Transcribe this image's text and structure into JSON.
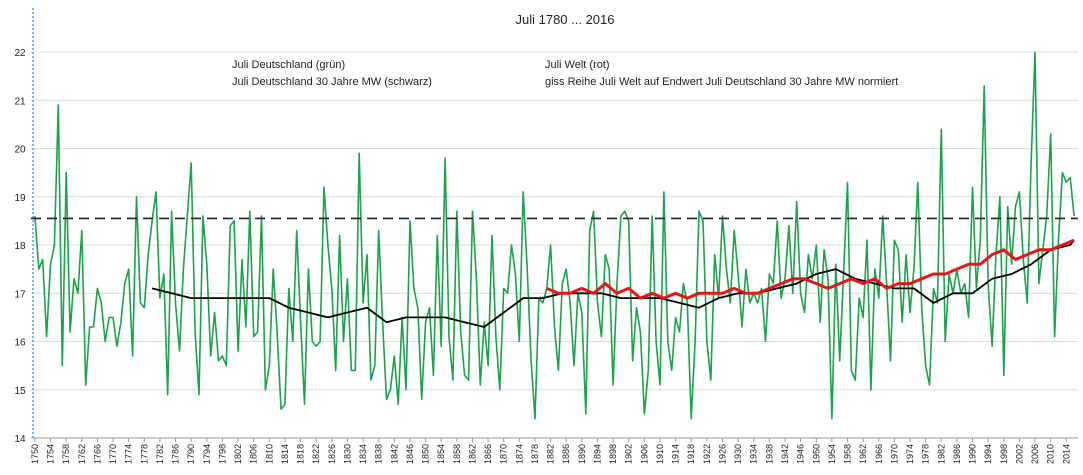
{
  "chart_data": {
    "type": "line",
    "title": "Juli 1780 ... 2016",
    "annotation": "giss Reihe Juli Welt auf Endwert Juli Deutschland 30 Jahre MW normiert",
    "xlim": [
      1749,
      2017
    ],
    "ylim": [
      14,
      22
    ],
    "yticks": [
      14,
      15,
      16,
      17,
      18,
      19,
      20,
      21,
      22
    ],
    "xticks": [
      1750,
      1754,
      1758,
      1762,
      1766,
      1770,
      1774,
      1778,
      1782,
      1786,
      1790,
      1794,
      1798,
      1802,
      1806,
      1810,
      1814,
      1818,
      1822,
      1826,
      1830,
      1834,
      1838,
      1842,
      1846,
      1850,
      1854,
      1858,
      1862,
      1866,
      1870,
      1874,
      1878,
      1882,
      1886,
      1890,
      1894,
      1898,
      1902,
      1906,
      1910,
      1914,
      1918,
      1922,
      1926,
      1930,
      1934,
      1938,
      1942,
      1946,
      1950,
      1954,
      1958,
      1962,
      1966,
      1970,
      1974,
      1978,
      1982,
      1986,
      1990,
      1994,
      1998,
      2002,
      2006,
      2010,
      2014
    ],
    "grid": true,
    "hline": 18.55,
    "series": [
      {
        "name": "Juli Deutschland (grün)",
        "color": "#1aa34a",
        "x": [
          1750,
          1751,
          1752,
          1753,
          1754,
          1755,
          1756,
          1757,
          1758,
          1759,
          1760,
          1761,
          1762,
          1763,
          1764,
          1765,
          1766,
          1767,
          1768,
          1769,
          1770,
          1771,
          1772,
          1773,
          1774,
          1775,
          1776,
          1777,
          1778,
          1779,
          1780,
          1781,
          1782,
          1783,
          1784,
          1785,
          1786,
          1787,
          1788,
          1789,
          1790,
          1791,
          1792,
          1793,
          1794,
          1795,
          1796,
          1797,
          1798,
          1799,
          1800,
          1801,
          1802,
          1803,
          1804,
          1805,
          1806,
          1807,
          1808,
          1809,
          1810,
          1811,
          1812,
          1813,
          1814,
          1815,
          1816,
          1817,
          1818,
          1819,
          1820,
          1821,
          1822,
          1823,
          1824,
          1825,
          1826,
          1827,
          1828,
          1829,
          1830,
          1831,
          1832,
          1833,
          1834,
          1835,
          1836,
          1837,
          1838,
          1839,
          1840,
          1841,
          1842,
          1843,
          1844,
          1845,
          1846,
          1847,
          1848,
          1849,
          1850,
          1851,
          1852,
          1853,
          1854,
          1855,
          1856,
          1857,
          1858,
          1859,
          1860,
          1861,
          1862,
          1863,
          1864,
          1865,
          1866,
          1867,
          1868,
          1869,
          1870,
          1871,
          1872,
          1873,
          1874,
          1875,
          1876,
          1877,
          1878,
          1879,
          1880,
          1881,
          1882,
          1883,
          1884,
          1885,
          1886,
          1887,
          1888,
          1889,
          1890,
          1891,
          1892,
          1893,
          1894,
          1895,
          1896,
          1897,
          1898,
          1899,
          1900,
          1901,
          1902,
          1903,
          1904,
          1905,
          1906,
          1907,
          1908,
          1909,
          1910,
          1911,
          1912,
          1913,
          1914,
          1915,
          1916,
          1917,
          1918,
          1919,
          1920,
          1921,
          1922,
          1923,
          1924,
          1925,
          1926,
          1927,
          1928,
          1929,
          1930,
          1931,
          1932,
          1933,
          1934,
          1935,
          1936,
          1937,
          1938,
          1939,
          1940,
          1941,
          1942,
          1943,
          1944,
          1945,
          1946,
          1947,
          1948,
          1949,
          1950,
          1951,
          1952,
          1953,
          1954,
          1955,
          1956,
          1957,
          1958,
          1959,
          1960,
          1961,
          1962,
          1963,
          1964,
          1965,
          1966,
          1967,
          1968,
          1969,
          1970,
          1971,
          1972,
          1973,
          1974,
          1975,
          1976,
          1977,
          1978,
          1979,
          1980,
          1981,
          1982,
          1983,
          1984,
          1985,
          1986,
          1987,
          1988,
          1989,
          1990,
          1991,
          1992,
          1993,
          1994,
          1995,
          1996,
          1997,
          1998,
          1999,
          2000,
          2001,
          2002,
          2003,
          2004,
          2005,
          2006,
          2007,
          2008,
          2009,
          2010,
          2011,
          2012,
          2013,
          2014,
          2015,
          2016
        ],
        "values": [
          18.6,
          17.5,
          17.7,
          16.1,
          17.6,
          18.0,
          20.9,
          15.5,
          19.5,
          16.2,
          17.3,
          17.0,
          18.3,
          15.1,
          16.3,
          16.3,
          17.1,
          16.8,
          16.0,
          16.5,
          16.5,
          15.9,
          16.4,
          17.2,
          17.5,
          15.7,
          19.0,
          16.8,
          16.7,
          17.8,
          18.5,
          19.1,
          16.9,
          17.4,
          14.9,
          18.7,
          16.8,
          15.8,
          17.5,
          18.6,
          19.7,
          16.2,
          14.9,
          18.6,
          17.6,
          15.7,
          16.6,
          15.6,
          15.7,
          15.5,
          18.4,
          18.5,
          15.8,
          17.7,
          16.3,
          18.7,
          16.1,
          16.2,
          18.6,
          15.0,
          15.5,
          17.5,
          16.2,
          14.6,
          14.7,
          17.1,
          16.0,
          18.3,
          16.4,
          14.7,
          17.5,
          16.0,
          15.9,
          16.0,
          19.2,
          18.0,
          17.1,
          15.4,
          18.2,
          16.0,
          17.3,
          15.4,
          15.4,
          19.9,
          16.8,
          17.8,
          15.2,
          15.5,
          18.3,
          16.4,
          14.8,
          15.0,
          15.7,
          14.7,
          16.5,
          15.0,
          18.5,
          17.1,
          16.7,
          14.8,
          16.4,
          16.7,
          15.3,
          18.2,
          15.9,
          19.8,
          16.1,
          15.2,
          18.7,
          16.2,
          15.3,
          15.2,
          18.7,
          17.3,
          15.1,
          16.4,
          15.5,
          18.2,
          16.1,
          15.0,
          17.1,
          17.0,
          18.0,
          17.4,
          16.0,
          19.1,
          17.5,
          15.6,
          14.4,
          16.9,
          16.8,
          17.1,
          18.0,
          16.3,
          15.4,
          17.2,
          17.5,
          16.8,
          15.5,
          17.0,
          16.6,
          14.5,
          18.3,
          18.7,
          16.8,
          16.1,
          17.8,
          17.5,
          15.1,
          17.2,
          18.6,
          18.7,
          18.5,
          15.6,
          16.7,
          16.2,
          14.5,
          15.4,
          18.6,
          16.0,
          15.1,
          19.1,
          16.0,
          15.4,
          16.5,
          16.2,
          17.2,
          16.8,
          14.4,
          16.0,
          18.7,
          18.5,
          16.0,
          15.2,
          17.8,
          16.9,
          18.6,
          17.5,
          16.8,
          18.3,
          17.4,
          16.3,
          17.5,
          16.8,
          17.0,
          16.8,
          17.1,
          16.0,
          17.4,
          17.2,
          18.5,
          16.9,
          17.3,
          18.4,
          17.0,
          18.9,
          17.0,
          16.6,
          17.8,
          17.3,
          18.0,
          16.4,
          17.9,
          17.3,
          14.4,
          17.6,
          15.6,
          17.4,
          19.3,
          15.4,
          15.2,
          16.9,
          16.5,
          18.1,
          15.0,
          17.5,
          16.9,
          18.6,
          17.2,
          15.6,
          18.1,
          17.9,
          16.4,
          17.8,
          16.6,
          17.5,
          19.3,
          16.7,
          15.5,
          15.1,
          17.1,
          16.8,
          20.4,
          16.0,
          17.4,
          17.0,
          17.5,
          17.0,
          17.2,
          16.5,
          19.2,
          17.1,
          18.1,
          21.3,
          17.2,
          15.9,
          17.8,
          19.0,
          15.3,
          18.8,
          17.6,
          18.8,
          19.1,
          17.7,
          16.8,
          19.7,
          22.0,
          17.2,
          17.9,
          18.6,
          20.3,
          16.1,
          18.1,
          19.5,
          19.3,
          19.4,
          18.6
        ]
      },
      {
        "name": "Juli Deutschland 30 Jahre MW (schwarz)",
        "color": "#000000",
        "x": [
          1780,
          1785,
          1790,
          1795,
          1800,
          1805,
          1810,
          1815,
          1820,
          1825,
          1830,
          1835,
          1840,
          1845,
          1850,
          1855,
          1860,
          1865,
          1870,
          1875,
          1880,
          1885,
          1890,
          1895,
          1900,
          1905,
          1910,
          1915,
          1920,
          1925,
          1930,
          1935,
          1940,
          1945,
          1950,
          1955,
          1960,
          1965,
          1970,
          1975,
          1980,
          1985,
          1990,
          1995,
          2000,
          2005,
          2010,
          2015,
          2016
        ],
        "values": [
          17.1,
          17.0,
          16.9,
          16.9,
          16.9,
          16.9,
          16.9,
          16.7,
          16.6,
          16.5,
          16.6,
          16.7,
          16.4,
          16.5,
          16.5,
          16.5,
          16.4,
          16.3,
          16.6,
          16.9,
          16.9,
          17.0,
          17.0,
          17.0,
          16.9,
          16.9,
          16.9,
          16.8,
          16.7,
          16.9,
          17.0,
          17.0,
          17.1,
          17.2,
          17.4,
          17.5,
          17.3,
          17.2,
          17.1,
          17.1,
          16.8,
          17.0,
          17.0,
          17.3,
          17.4,
          17.6,
          17.9,
          18.0,
          18.1
        ]
      },
      {
        "name": "Juli Welt (rot)",
        "color": "#e8161b",
        "x": [
          1881,
          1884,
          1887,
          1890,
          1893,
          1896,
          1899,
          1902,
          1905,
          1908,
          1911,
          1914,
          1917,
          1920,
          1923,
          1926,
          1929,
          1932,
          1935,
          1938,
          1941,
          1944,
          1947,
          1950,
          1953,
          1956,
          1959,
          1962,
          1965,
          1968,
          1971,
          1974,
          1977,
          1980,
          1983,
          1986,
          1989,
          1992,
          1995,
          1998,
          2001,
          2004,
          2007,
          2010,
          2013,
          2016
        ],
        "values": [
          17.1,
          17.0,
          17.0,
          17.1,
          17.0,
          17.2,
          17.0,
          17.1,
          16.9,
          17.0,
          16.9,
          17.0,
          16.9,
          17.0,
          17.0,
          17.0,
          17.1,
          17.0,
          17.0,
          17.1,
          17.2,
          17.3,
          17.3,
          17.2,
          17.1,
          17.2,
          17.3,
          17.2,
          17.3,
          17.1,
          17.2,
          17.2,
          17.3,
          17.4,
          17.4,
          17.5,
          17.6,
          17.6,
          17.8,
          17.9,
          17.7,
          17.8,
          17.9,
          17.9,
          18.0,
          18.1
        ]
      }
    ]
  }
}
